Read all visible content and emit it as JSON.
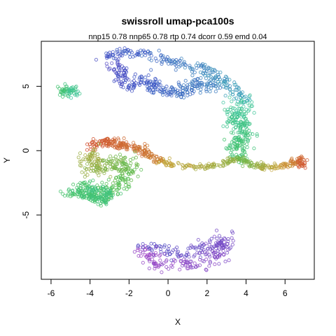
{
  "chart_data": {
    "type": "scatter",
    "title": "swissroll umap-pca100s",
    "subtitle": "nnp15 0.78 nnp65 0.78 rtp 0.74 dcorr 0.59 emd 0.04",
    "xlabel": "X",
    "ylabel": "Y",
    "xlim": [
      -6.5,
      7.5
    ],
    "ylim": [
      -10,
      8.5
    ],
    "xticks": [
      -6,
      -4,
      -2,
      0,
      2,
      4,
      6
    ],
    "yticks": [
      -5,
      0,
      5
    ],
    "grid": false,
    "legend": "none",
    "colormap": [
      "#d2472c",
      "#c9a43b",
      "#44c052",
      "#3ec7b4",
      "#3a54c4",
      "#a044c6"
    ],
    "clusters": [
      {
        "name": "small-left",
        "color_t": 0.45,
        "color_t2": 0.55,
        "n": 60,
        "path": [
          [
            -5.5,
            4.3
          ],
          [
            -5.3,
            4.8
          ],
          [
            -5.0,
            4.9
          ],
          [
            -4.8,
            4.6
          ],
          [
            -5.0,
            4.3
          ]
        ],
        "spread": 0.15
      },
      {
        "name": "top-arc-inner",
        "color_t": 0.85,
        "color_t2": 0.72,
        "n": 260,
        "path": [
          [
            -2.8,
            6.8
          ],
          [
            -2.4,
            6.0
          ],
          [
            -2.3,
            5.0
          ],
          [
            -1.6,
            5.3
          ],
          [
            -0.9,
            5.5
          ],
          [
            -0.6,
            4.8
          ],
          [
            0.1,
            4.6
          ],
          [
            0.7,
            4.5
          ],
          [
            1.1,
            5.0
          ],
          [
            1.8,
            5.2
          ],
          [
            2.5,
            5.0
          ]
        ],
        "spread": 0.25
      },
      {
        "name": "top-arc-outer",
        "color_t": 0.82,
        "color_t2": 0.65,
        "n": 220,
        "path": [
          [
            -3.3,
            7.2
          ],
          [
            -2.6,
            7.5
          ],
          [
            -1.8,
            7.6
          ],
          [
            -1.1,
            7.4
          ],
          [
            -0.3,
            7.1
          ],
          [
            0.4,
            6.8
          ],
          [
            1.2,
            6.5
          ],
          [
            1.9,
            6.3
          ],
          [
            2.5,
            5.9
          ],
          [
            3.1,
            5.0
          ],
          [
            3.7,
            4.3
          ],
          [
            4.0,
            3.7
          ]
        ],
        "spread": 0.22
      },
      {
        "name": "right-column",
        "color_t": 0.55,
        "color_t2": 0.45,
        "n": 230,
        "path": [
          [
            3.9,
            3.6
          ],
          [
            3.6,
            3.0
          ],
          [
            3.3,
            2.5
          ],
          [
            3.7,
            2.0
          ],
          [
            4.0,
            1.3
          ],
          [
            3.6,
            0.7
          ],
          [
            3.5,
            0.0
          ],
          [
            3.6,
            -0.5
          ]
        ],
        "spread": 0.3
      },
      {
        "name": "bridge",
        "color_t": 0.2,
        "color_t2": 0.28,
        "n": 130,
        "path": [
          [
            -0.5,
            -0.8
          ],
          [
            0.5,
            -1.1
          ],
          [
            1.3,
            -1.2
          ],
          [
            2.1,
            -1.2
          ],
          [
            2.8,
            -1.0
          ],
          [
            3.6,
            -0.6
          ]
        ],
        "spread": 0.1
      },
      {
        "name": "right-arm",
        "color_t": 0.35,
        "color_t2": 0.02,
        "n": 170,
        "path": [
          [
            3.6,
            -0.6
          ],
          [
            4.3,
            -1.1
          ],
          [
            5.0,
            -1.3
          ],
          [
            5.8,
            -1.2
          ],
          [
            6.3,
            -1.0
          ],
          [
            6.7,
            -0.6
          ],
          [
            6.9,
            -1.3
          ]
        ],
        "spread": 0.13
      },
      {
        "name": "left-top-band",
        "color_t": 0.02,
        "color_t2": 0.12,
        "n": 200,
        "path": [
          [
            -3.9,
            0.4
          ],
          [
            -3.5,
            0.6
          ],
          [
            -2.9,
            0.6
          ],
          [
            -2.3,
            0.4
          ],
          [
            -1.7,
            0.2
          ],
          [
            -1.1,
            -0.2
          ],
          [
            -0.5,
            -0.8
          ]
        ],
        "spread": 0.18
      },
      {
        "name": "left-blob",
        "color_t": 0.25,
        "color_t2": 0.45,
        "n": 320,
        "path": [
          [
            -3.9,
            -0.2
          ],
          [
            -4.1,
            -1.2
          ],
          [
            -3.6,
            -1.5
          ],
          [
            -3.0,
            -1.0
          ],
          [
            -2.4,
            -0.8
          ],
          [
            -2.0,
            -1.5
          ],
          [
            -2.3,
            -2.3
          ],
          [
            -2.8,
            -3.2
          ],
          [
            -3.4,
            -3.5
          ],
          [
            -4.0,
            -3.2
          ],
          [
            -4.3,
            -2.5
          ]
        ],
        "spread": 0.3
      },
      {
        "name": "left-bottom",
        "color_t": 0.45,
        "color_t2": 0.5,
        "n": 140,
        "path": [
          [
            -5.2,
            -3.4
          ],
          [
            -4.6,
            -3.3
          ],
          [
            -4.0,
            -3.6
          ],
          [
            -3.4,
            -3.8
          ],
          [
            -3.0,
            -3.5
          ],
          [
            -3.2,
            -3.1
          ],
          [
            -3.9,
            -3.0
          ]
        ],
        "spread": 0.18
      },
      {
        "name": "bottom-butterfly",
        "color_t": 0.85,
        "color_t2": 1.0,
        "n": 270,
        "path": [
          [
            -1.2,
            -7.3
          ],
          [
            -0.5,
            -7.6
          ],
          [
            0.3,
            -7.9
          ],
          [
            1.0,
            -8.0
          ],
          [
            1.6,
            -7.7
          ],
          [
            2.2,
            -7.5
          ],
          [
            2.8,
            -6.7
          ],
          [
            2.7,
            -7.6
          ],
          [
            2.2,
            -8.6
          ],
          [
            1.3,
            -8.8
          ],
          [
            0.4,
            -8.6
          ],
          [
            -0.4,
            -8.9
          ],
          [
            -1.0,
            -8.3
          ],
          [
            -1.2,
            -7.3
          ]
        ],
        "spread": 0.28
      }
    ]
  }
}
